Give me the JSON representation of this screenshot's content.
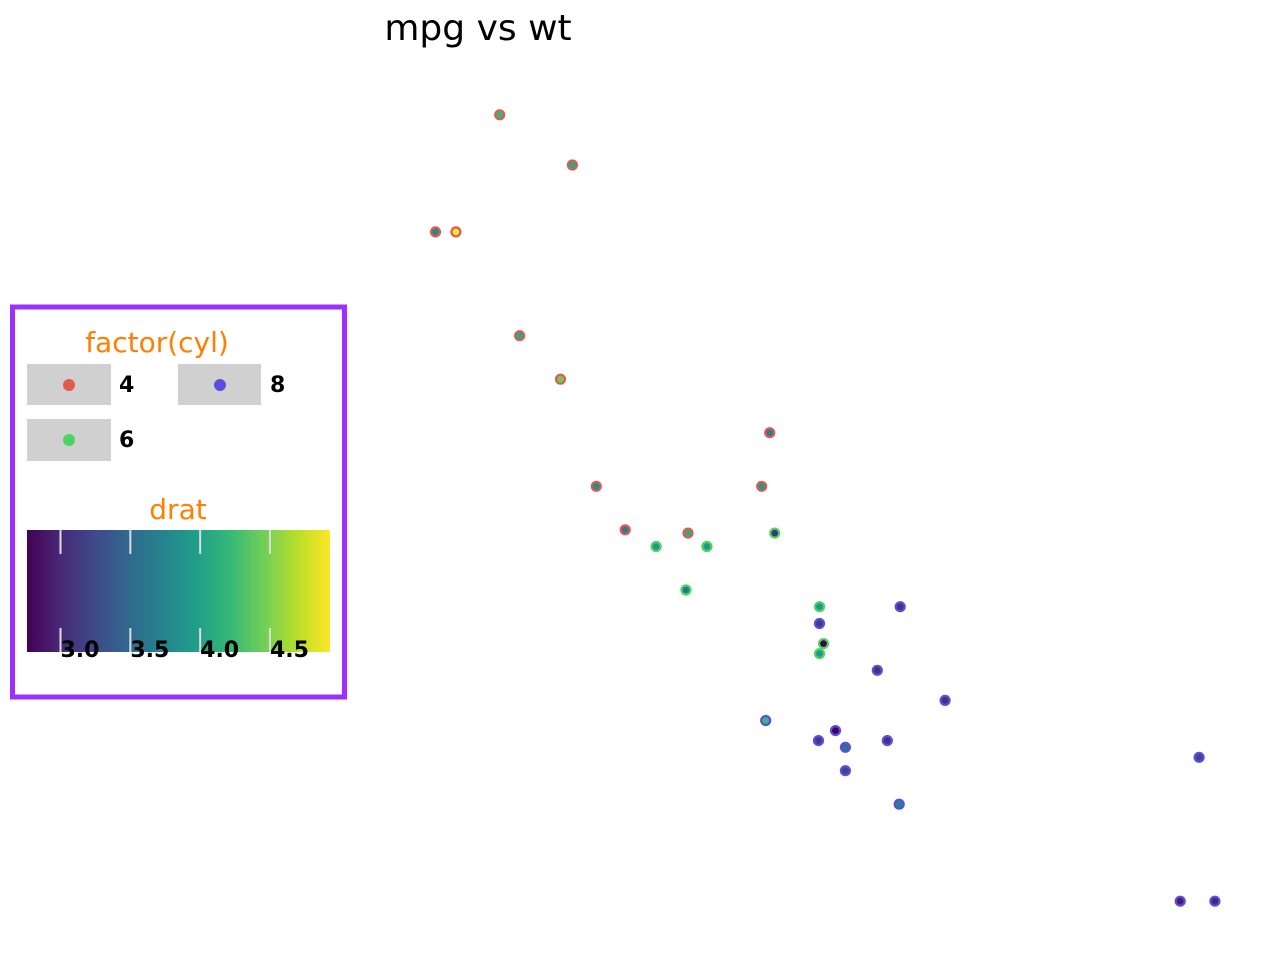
{
  "chart_data": {
    "type": "scatter",
    "title": "mpg vs wt",
    "xlabel": "",
    "ylabel": "",
    "xlim": [
      1.41,
      5.53
    ],
    "ylim": [
      9.6,
      35.0
    ],
    "grid": false,
    "axes_visible": false,
    "point_fill_by": "drat",
    "point_outline_by": "factor(cyl)",
    "series": [
      {
        "name": "4",
        "color": "#e05a4e",
        "points": [
          {
            "x": 2.32,
            "y": 22.8,
            "drat": 3.85
          },
          {
            "x": 3.19,
            "y": 24.4,
            "drat": 3.69
          },
          {
            "x": 3.15,
            "y": 22.8,
            "drat": 3.92
          },
          {
            "x": 2.2,
            "y": 32.4,
            "drat": 4.08
          },
          {
            "x": 1.615,
            "y": 30.4,
            "drat": 4.93
          },
          {
            "x": 1.835,
            "y": 33.9,
            "drat": 4.22
          },
          {
            "x": 2.465,
            "y": 21.5,
            "drat": 3.7
          },
          {
            "x": 1.935,
            "y": 27.3,
            "drat": 4.08
          },
          {
            "x": 2.14,
            "y": 26.0,
            "drat": 4.43
          },
          {
            "x": 1.513,
            "y": 30.4,
            "drat": 3.77
          },
          {
            "x": 2.78,
            "y": 21.4,
            "drat": 4.11
          }
        ]
      },
      {
        "name": "6",
        "color": "#4bd45e",
        "points": [
          {
            "x": 2.62,
            "y": 21.0,
            "drat": 3.9
          },
          {
            "x": 2.875,
            "y": 21.0,
            "drat": 3.9
          },
          {
            "x": 3.215,
            "y": 21.4,
            "drat": 3.08
          },
          {
            "x": 3.46,
            "y": 18.1,
            "drat": 2.76
          },
          {
            "x": 3.44,
            "y": 19.2,
            "drat": 3.92
          },
          {
            "x": 3.44,
            "y": 17.8,
            "drat": 3.92
          },
          {
            "x": 2.77,
            "y": 19.7,
            "drat": 3.62
          }
        ]
      },
      {
        "name": "8",
        "color": "#5a4ee0",
        "points": [
          {
            "x": 3.44,
            "y": 18.7,
            "drat": 3.15
          },
          {
            "x": 3.57,
            "y": 14.3,
            "drat": 3.21
          },
          {
            "x": 4.07,
            "y": 16.4,
            "drat": 3.07
          },
          {
            "x": 3.73,
            "y": 17.3,
            "drat": 3.07
          },
          {
            "x": 3.78,
            "y": 15.2,
            "drat": 3.07
          },
          {
            "x": 5.25,
            "y": 10.4,
            "drat": 2.93
          },
          {
            "x": 5.424,
            "y": 10.4,
            "drat": 3.0
          },
          {
            "x": 5.345,
            "y": 14.7,
            "drat": 3.23
          },
          {
            "x": 3.52,
            "y": 15.5,
            "drat": 2.76
          },
          {
            "x": 3.435,
            "y": 15.2,
            "drat": 3.15
          },
          {
            "x": 3.84,
            "y": 13.3,
            "drat": 3.73
          },
          {
            "x": 3.845,
            "y": 19.2,
            "drat": 3.08
          },
          {
            "x": 3.17,
            "y": 15.8,
            "drat": 4.22
          },
          {
            "x": 3.57,
            "y": 15.0,
            "drat": 3.54
          }
        ]
      }
    ],
    "legend": {
      "placement": "left",
      "border_color": "#9b30ff",
      "title_color": "#ff7f00",
      "key_background": "#d0d0d0",
      "cyl": {
        "title": "factor(cyl)",
        "entries": [
          "4",
          "8",
          "6"
        ]
      },
      "drat": {
        "title": "drat",
        "min": 2.76,
        "max": 4.93,
        "ticks": [
          3.0,
          3.5,
          4.0,
          4.5
        ],
        "tick_labels": [
          "3.0",
          "3.5",
          "4.0",
          "4.5"
        ],
        "colormap": "viridis",
        "stops": [
          "#440154",
          "#482878",
          "#3e4989",
          "#31688e",
          "#26828e",
          "#1f9e89",
          "#35b779",
          "#6ece58",
          "#b5de2b",
          "#fde725"
        ]
      }
    }
  }
}
